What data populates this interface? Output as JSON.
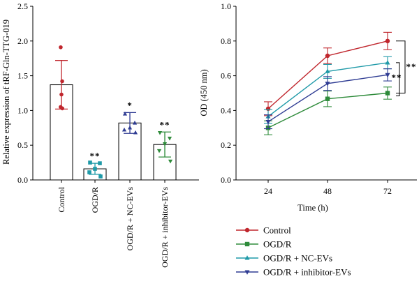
{
  "chart_data": [
    {
      "type": "bar",
      "ylabel": "Relative expression of tRF-Gln-TTG-019",
      "ylim": [
        0,
        2.5
      ],
      "yticks": [
        "0.0",
        "0.5",
        "1.0",
        "1.5",
        "2.0",
        "2.5"
      ],
      "categories": [
        "Control",
        "OGD/R",
        "OGD/R + NC-EVs",
        "OGD/R + inhibitor-EVs"
      ],
      "values": [
        1.37,
        0.16,
        0.82,
        0.51
      ],
      "errors": [
        0.35,
        0.08,
        0.15,
        0.18
      ],
      "significance": [
        "",
        "**",
        "*",
        "**"
      ],
      "colors": [
        "#c0262d",
        "#1f9aa8",
        "#2f3c93",
        "#2e8b3a"
      ],
      "markers": [
        "circle",
        "square",
        "triangle-up",
        "triangle-down"
      ],
      "points": [
        [
          1.91,
          1.42,
          1.23,
          1.05,
          1.03
        ],
        [
          0.25,
          0.24,
          0.16,
          0.11,
          0.05
        ],
        [
          0.95,
          0.82,
          0.75,
          0.72,
          0.68
        ],
        [
          0.68,
          0.6,
          0.52,
          0.42,
          0.27
        ]
      ]
    },
    {
      "type": "line",
      "ylabel": "OD (450 nm)",
      "xlabel": "Time (h)",
      "x": [
        "24",
        "48",
        "72"
      ],
      "ylim": [
        0,
        1.0
      ],
      "yticks": [
        "0.0",
        "0.2",
        "0.4",
        "0.6",
        "0.8",
        "1.0"
      ],
      "series": [
        {
          "name": "Control",
          "values": [
            0.41,
            0.715,
            0.8
          ],
          "errors": [
            0.04,
            0.045,
            0.05
          ],
          "color": "#c0262d",
          "marker": "circle"
        },
        {
          "name": "OGD/R",
          "values": [
            0.3,
            0.467,
            0.5
          ],
          "errors": [
            0.04,
            0.045,
            0.035
          ],
          "color": "#2e8b3a",
          "marker": "square"
        },
        {
          "name": "OGD/R + NC-EVs",
          "values": [
            0.365,
            0.625,
            0.675
          ],
          "errors": [
            0.04,
            0.04,
            0.035
          ],
          "color": "#1f9aa8",
          "marker": "triangle-up"
        },
        {
          "name": "OGD/R + inhibitor-EVs",
          "values": [
            0.335,
            0.555,
            0.605
          ],
          "errors": [
            0.04,
            0.04,
            0.035
          ],
          "color": "#2f3c93",
          "marker": "triangle-down"
        }
      ],
      "significance": [
        "**",
        "**"
      ]
    }
  ]
}
